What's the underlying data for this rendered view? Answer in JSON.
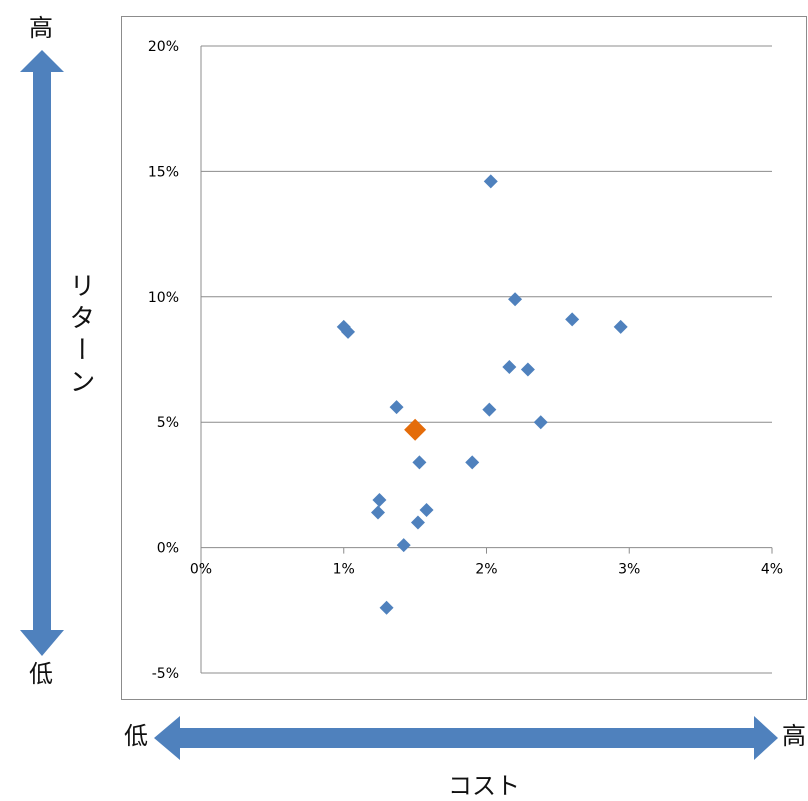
{
  "labels": {
    "y_high": "高",
    "y_low": "低",
    "y_axis": "リターン",
    "x_low": "低",
    "x_high": "高",
    "x_axis": "コスト"
  },
  "colors": {
    "arrow": "#4f81bd",
    "point": "#4f81bd",
    "highlight": "#e46c0a",
    "grid": "#8c8c8c"
  },
  "chart_data": {
    "type": "scatter",
    "title": "",
    "xlabel": "コスト",
    "ylabel": "リターン",
    "xlim": [
      0,
      4
    ],
    "ylim": [
      -5,
      20
    ],
    "x_ticks": [
      0,
      1,
      2,
      3,
      4
    ],
    "x_tick_labels": [
      "0%",
      "1%",
      "2%",
      "3%",
      "4%"
    ],
    "y_ticks": [
      -5,
      0,
      5,
      10,
      15,
      20
    ],
    "y_tick_labels": [
      "-5%",
      "0%",
      "5%",
      "10%",
      "15%",
      "20%"
    ],
    "grid": "horizontal",
    "units": "%",
    "series": [
      {
        "color": "#4f81bd",
        "marker": "diamond",
        "points": [
          [
            1.0,
            8.8
          ],
          [
            1.03,
            8.6
          ],
          [
            1.37,
            5.6
          ],
          [
            1.53,
            3.4
          ],
          [
            1.25,
            1.9
          ],
          [
            1.24,
            1.4
          ],
          [
            1.58,
            1.5
          ],
          [
            1.52,
            1.0
          ],
          [
            1.42,
            0.1
          ],
          [
            1.3,
            -2.4
          ],
          [
            2.03,
            14.6
          ],
          [
            2.2,
            9.9
          ],
          [
            2.16,
            7.2
          ],
          [
            2.29,
            7.1
          ],
          [
            2.02,
            5.5
          ],
          [
            1.9,
            3.4
          ],
          [
            2.38,
            5.0
          ],
          [
            2.6,
            9.1
          ],
          [
            2.94,
            8.8
          ]
        ]
      },
      {
        "color": "#e46c0a",
        "marker": "diamond",
        "highlight": true,
        "points": [
          [
            1.5,
            4.7
          ]
        ]
      }
    ]
  }
}
